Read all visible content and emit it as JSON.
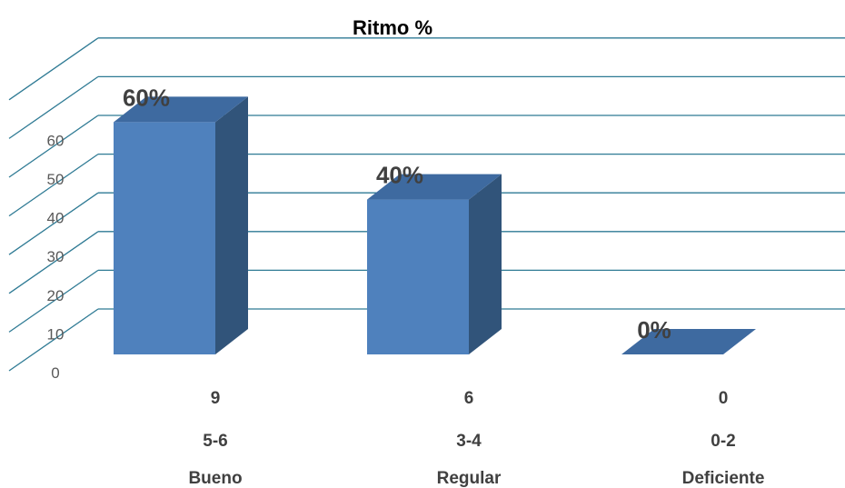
{
  "chart_data": {
    "type": "bar",
    "title": "Ritmo %",
    "categories": [
      {
        "count": "9",
        "range": "5-6",
        "name": "Bueno"
      },
      {
        "count": "6",
        "range": "3-4",
        "name": "Regular"
      },
      {
        "count": "0",
        "range": "0-2",
        "name": "Deficiente"
      }
    ],
    "values": [
      60,
      40,
      0
    ],
    "data_labels": [
      "60%",
      "40%",
      "0%"
    ],
    "yticks": [
      "0",
      "10",
      "20",
      "30",
      "40",
      "50",
      "60"
    ],
    "ylim": [
      0,
      70
    ],
    "grid": true,
    "style": "3d-column",
    "colors": {
      "front": "#4f81bd",
      "side": "#31547a",
      "top": "#3e6aa0",
      "grid": "#2e7a94"
    }
  }
}
